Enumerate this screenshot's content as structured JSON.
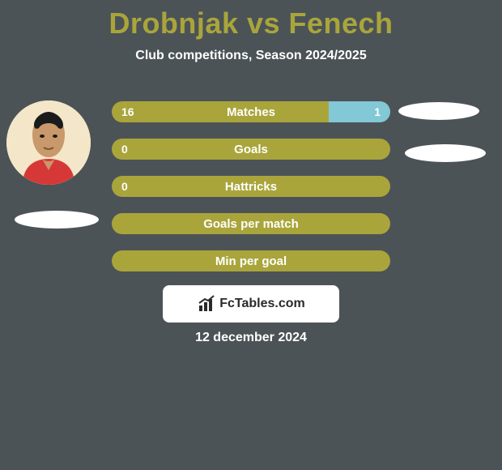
{
  "background_color": "#4c5357",
  "title": {
    "text": "Drobnjak vs Fenech",
    "color": "#a9a53b",
    "font_size": 36
  },
  "subtitle": {
    "text": "Club competitions, Season 2024/2025",
    "color": "#ffffff",
    "font_size": 16
  },
  "bars": {
    "bg_color": "#a9a53b",
    "left_fill_color": "#a9a53b",
    "right_fill_color": "#82c8d6",
    "text_color": "#ffffff",
    "rows": [
      {
        "label": "Matches",
        "left_value": "16",
        "right_value": "1",
        "left_pct": 78,
        "right_pct": 22
      },
      {
        "label": "Goals",
        "left_value": "0",
        "right_value": "",
        "left_pct": 100,
        "right_pct": 0
      },
      {
        "label": "Hattricks",
        "left_value": "0",
        "right_value": "",
        "left_pct": 100,
        "right_pct": 0
      },
      {
        "label": "Goals per match",
        "left_value": "",
        "right_value": "",
        "left_pct": 100,
        "right_pct": 0
      },
      {
        "label": "Min per goal",
        "left_value": "",
        "right_value": "",
        "left_pct": 100,
        "right_pct": 0
      }
    ]
  },
  "branding": {
    "bg_color": "#ffffff",
    "text": "FcTables.com",
    "text_color": "#2a2a2a",
    "icon_color": "#2a2a2a"
  },
  "date": {
    "text": "12 december 2024",
    "color": "#ffffff"
  },
  "shadow_color": "#ffffff"
}
